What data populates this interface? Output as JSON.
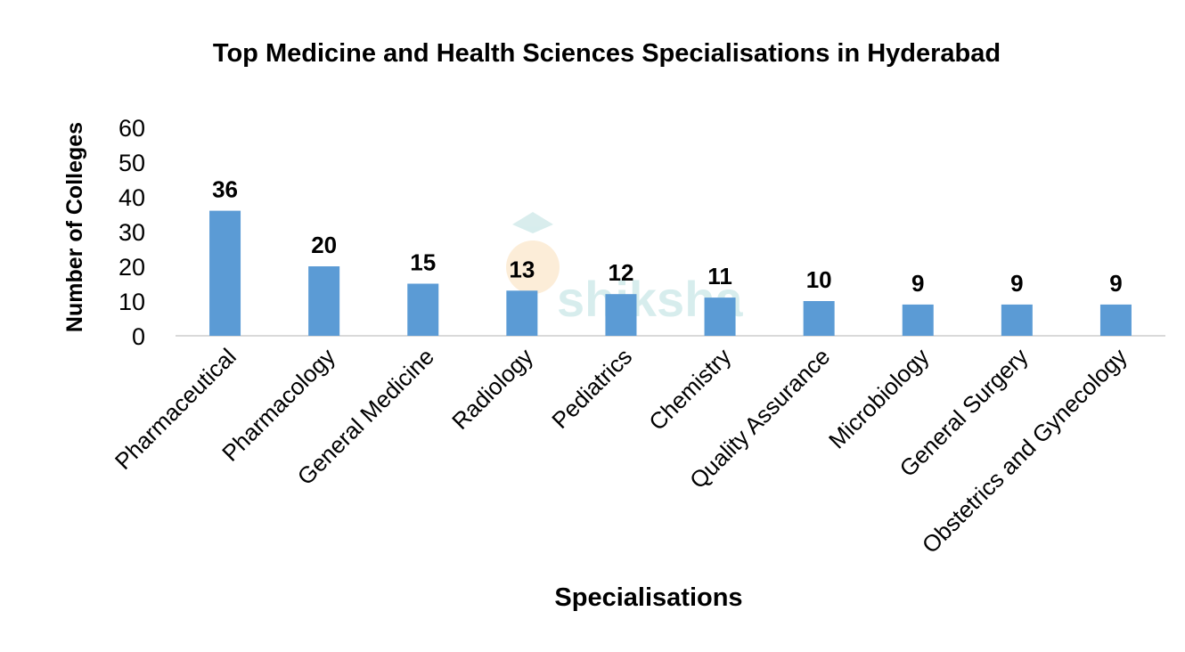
{
  "watermark": {
    "text": "shiksha"
  },
  "chart_data": {
    "type": "bar",
    "title": "Top Medicine and Health Sciences Specialisations in Hyderabad",
    "xlabel": "Specialisations",
    "ylabel": "Number of Colleges",
    "categories": [
      "Pharmaceutical",
      "Pharmacology",
      "General Medicine",
      "Radiology",
      "Pediatrics",
      "Chemistry",
      "Quality Assurance",
      "Microbiology",
      "General Surgery",
      "Obstetrics and Gynecology"
    ],
    "values": [
      36,
      20,
      15,
      13,
      12,
      11,
      10,
      9,
      9,
      9
    ],
    "ylim": [
      0,
      60
    ],
    "yticks": [
      0,
      10,
      20,
      30,
      40,
      50,
      60
    ],
    "grid": false,
    "bar_color": "#5b9bd5",
    "data_labels": true
  }
}
